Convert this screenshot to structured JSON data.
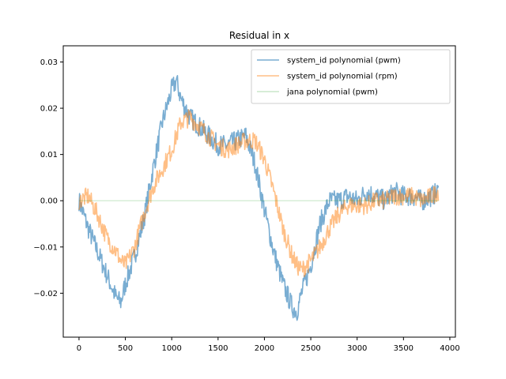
{
  "chart_data": {
    "type": "line",
    "title": "Residual in x",
    "xlabel": "",
    "ylabel": "",
    "xlim": [
      -170,
      4060
    ],
    "ylim": [
      -0.0295,
      0.0335
    ],
    "xticks": [
      0,
      500,
      1000,
      1500,
      2000,
      2500,
      3000,
      3500,
      4000
    ],
    "xtick_labels": [
      "0",
      "500",
      "1000",
      "1500",
      "2000",
      "2500",
      "3000",
      "3500",
      "4000"
    ],
    "yticks": [
      -0.02,
      -0.01,
      0.0,
      0.01,
      0.02,
      0.03
    ],
    "ytick_labels": [
      "−0.02",
      "−0.01",
      "0.00",
      "0.01",
      "0.02",
      "0.03"
    ],
    "grid": false,
    "legend_position": "top-right",
    "series": [
      {
        "name": "system_id polynomial (pwm)",
        "color": "#1f77b4",
        "x": [
          0,
          100,
          200,
          300,
          400,
          450,
          500,
          600,
          700,
          800,
          900,
          1000,
          1050,
          1100,
          1200,
          1300,
          1400,
          1500,
          1600,
          1700,
          1800,
          1900,
          2000,
          2100,
          2200,
          2300,
          2350,
          2400,
          2500,
          2600,
          2700,
          2800,
          2900,
          3000,
          3100,
          3200,
          3300,
          3400,
          3500,
          3600,
          3700,
          3800,
          3880
        ],
        "y": [
          0.0,
          -0.006,
          -0.011,
          -0.016,
          -0.021,
          -0.022,
          -0.018,
          -0.012,
          -0.004,
          0.007,
          0.017,
          0.024,
          0.026,
          0.022,
          0.018,
          0.016,
          0.014,
          0.012,
          0.012,
          0.013,
          0.014,
          0.008,
          -0.002,
          -0.011,
          -0.018,
          -0.023,
          -0.024,
          -0.02,
          -0.014,
          -0.005,
          0.0,
          0.0,
          0.001,
          0.0,
          0.002,
          0.001,
          0.0,
          0.002,
          0.001,
          0.001,
          0.0,
          0.001,
          0.002
        ]
      },
      {
        "name": "system_id polynomial (rpm)",
        "color": "#ff7f0e",
        "x": [
          0,
          100,
          200,
          300,
          400,
          450,
          500,
          600,
          700,
          800,
          900,
          1000,
          1050,
          1100,
          1200,
          1300,
          1400,
          1500,
          1600,
          1700,
          1800,
          1900,
          2000,
          2100,
          2200,
          2300,
          2350,
          2400,
          2500,
          2600,
          2700,
          2800,
          2900,
          3000,
          3100,
          3200,
          3300,
          3400,
          3500,
          3600,
          3700,
          3800,
          3880
        ],
        "y": [
          0.0,
          0.001,
          -0.003,
          -0.008,
          -0.011,
          -0.013,
          -0.014,
          -0.01,
          -0.003,
          0.003,
          0.007,
          0.011,
          0.014,
          0.017,
          0.018,
          0.016,
          0.014,
          0.012,
          0.011,
          0.012,
          0.013,
          0.013,
          0.009,
          0.002,
          -0.006,
          -0.012,
          -0.014,
          -0.015,
          -0.013,
          -0.01,
          -0.006,
          -0.003,
          -0.001,
          -0.001,
          -0.001,
          0.0,
          0.0,
          0.001,
          0.001,
          0.001,
          0.0,
          0.001,
          0.002
        ]
      },
      {
        "name": "jana polynomial (pwm)",
        "color": "#2ca02c",
        "x": [
          0,
          500,
          1000,
          1500,
          2000,
          2500,
          3000,
          3500,
          3880
        ],
        "y": [
          0.0,
          0.0,
          0.0,
          0.0,
          0.0,
          0.0,
          0.0,
          0.0,
          0.0
        ]
      }
    ]
  }
}
